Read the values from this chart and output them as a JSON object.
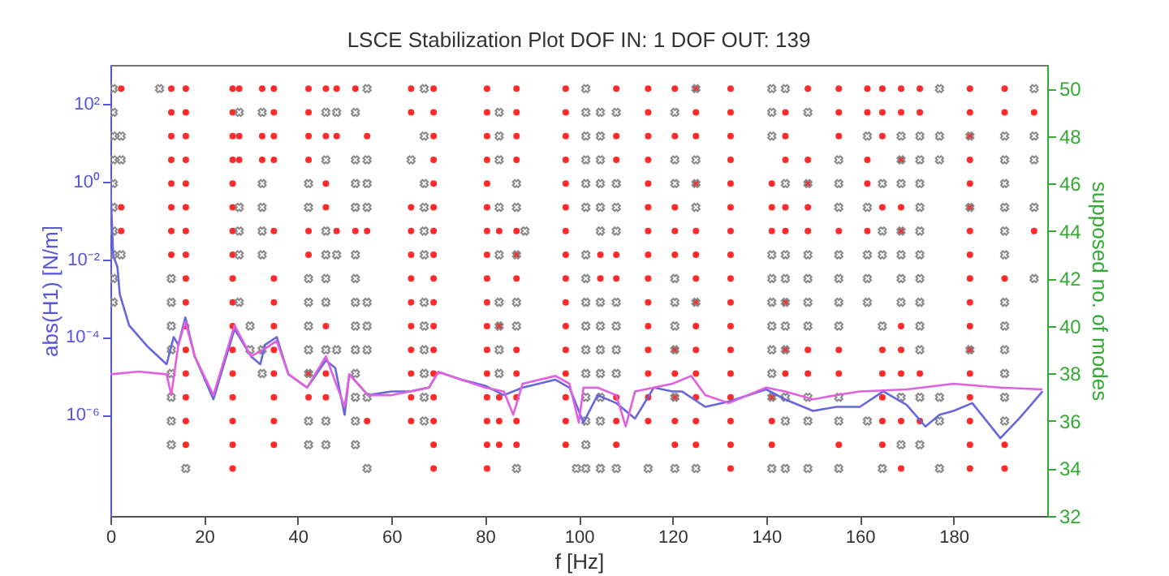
{
  "chart_data": {
    "type": "scatter",
    "title": "LSCE Stabilization Plot DOF IN: 1 DOF OUT: 139",
    "xlabel": "f [Hz]",
    "ylabel": "abs(H1) [N/m]",
    "y2label": "supposed no. of modes",
    "xlim": [
      0,
      200
    ],
    "xticks": [
      0,
      20,
      40,
      60,
      80,
      100,
      120,
      140,
      160,
      180
    ],
    "ylim": [
      2.5e-09,
      1000
    ],
    "yticks": [
      {
        "value": 1e-06,
        "label": "10⁻⁶"
      },
      {
        "value": 0.0001,
        "label": "10⁻⁴"
      },
      {
        "value": 0.01,
        "label": "10⁻²"
      },
      {
        "value": 1,
        "label": "10⁰"
      },
      {
        "value": 100,
        "label": "10²"
      }
    ],
    "y2lim": [
      32,
      51
    ],
    "y2ticks": [
      32,
      34,
      36,
      38,
      40,
      42,
      44,
      46,
      48,
      50
    ],
    "log": "y",
    "grid": false,
    "series": [
      {
        "type": "line",
        "axis": "y",
        "color": "#6666dd",
        "line_style": "solid",
        "marker": "none",
        "x": [
          0,
          0.6,
          1.5,
          2,
          4,
          8,
          12,
          13.5,
          14.5,
          16,
          18,
          22,
          26.5,
          30,
          32,
          33,
          35.5,
          38,
          42,
          46,
          48,
          50,
          51,
          55,
          60,
          64,
          68,
          70,
          75,
          80,
          84,
          88,
          95,
          98,
          101,
          104,
          108,
          112,
          116,
          120,
          122,
          127,
          132,
          140,
          144,
          150,
          155,
          160,
          165,
          170,
          174,
          177,
          180,
          184,
          190,
          194,
          199
        ],
        "values": [
          0.8,
          0.0126,
          0.0063,
          0.00126,
          0.0002,
          5.6e-05,
          2e-05,
          0.0001,
          6.3e-05,
          0.00032,
          3.2e-05,
          2.5e-06,
          0.00016,
          3.2e-05,
          2e-05,
          6.3e-05,
          0.0001,
          1.1e-05,
          5e-06,
          2.5e-05,
          1.6e-05,
          1e-06,
          1.1e-05,
          3.2e-06,
          4e-06,
          4e-06,
          5e-06,
          1.26e-05,
          8e-06,
          5.6e-06,
          3.2e-06,
          5e-06,
          8e-06,
          5e-06,
          6.3e-07,
          3.2e-06,
          2e-06,
          8e-07,
          5e-06,
          4e-06,
          4e-06,
          1.6e-06,
          2.2e-06,
          4.5e-06,
          2.5e-06,
          1.26e-06,
          1.6e-06,
          1.6e-06,
          4e-06,
          1.8e-06,
          5e-07,
          1e-06,
          1.26e-06,
          2e-06,
          2.5e-07,
          8e-07,
          4e-06
        ]
      },
      {
        "type": "line",
        "axis": "y",
        "color": "#e060e0",
        "line_style": "solid",
        "marker": "none",
        "x": [
          0,
          6,
          12,
          13,
          14.5,
          16,
          18,
          22,
          26.5,
          30,
          33,
          35.5,
          38,
          42,
          46,
          50,
          51,
          55,
          60,
          68,
          70,
          80,
          84,
          86,
          88,
          95,
          98,
          100,
          101,
          104,
          108,
          110,
          112,
          116,
          120,
          124,
          127,
          132,
          140,
          144,
          150,
          155,
          160,
          170,
          180,
          190,
          199
        ],
        "values": [
          1.1e-05,
          1.3e-05,
          1.1e-05,
          3.2e-06,
          6.3e-05,
          0.00025,
          3.2e-05,
          3.2e-06,
          0.0002,
          3.2e-05,
          5e-05,
          8e-05,
          1.1e-05,
          5e-06,
          3.2e-05,
          1.6e-06,
          1.1e-05,
          3.2e-06,
          3.2e-06,
          5e-06,
          1.26e-05,
          5e-06,
          4e-06,
          1e-06,
          6.3e-06,
          1e-05,
          6.3e-06,
          6.3e-07,
          5e-06,
          5e-06,
          3.2e-06,
          5e-07,
          4e-06,
          5e-06,
          6.3e-06,
          1e-05,
          3.2e-06,
          2e-06,
          5e-06,
          4e-06,
          2.5e-06,
          3.2e-06,
          4e-06,
          4.5e-06,
          6.3e-06,
          5e-06,
          4.5e-06
        ]
      },
      {
        "axis": "y2",
        "color": "#ff2a2a",
        "marker": "circle",
        "x": [
          2.3,
          2.3,
          2.3,
          13,
          13,
          13,
          13,
          13,
          13,
          13,
          13,
          16.1,
          16.1,
          16.1,
          16.1,
          16.1,
          16.1,
          16.1,
          16.1,
          16.1,
          16.1,
          16.1,
          16.1,
          16.1,
          16.1,
          16.1,
          16.1,
          26.1,
          26.1,
          26.1,
          26.1,
          26.1,
          26.1,
          26.1,
          26.1,
          26.1,
          26.1,
          26.1,
          26.1,
          26.1,
          26.1,
          26.1,
          26.1,
          26.1,
          27.5,
          27.5,
          27.5,
          32.4,
          32.4,
          32.4,
          34.9,
          34.9,
          34.9,
          34.9,
          34.9,
          34.9,
          34.9,
          34.9,
          34.9,
          34.9,
          34.9,
          34.9,
          34.9,
          42.3,
          42.3,
          42.3,
          42.3,
          42.3,
          42.3,
          42.3,
          42.3,
          46,
          46,
          46,
          46,
          46,
          46,
          46,
          48.3,
          48.3,
          48.3,
          52.3,
          52.3,
          54.8,
          54.8,
          54.8,
          64.2,
          64.2,
          64.2,
          64.2,
          64.2,
          64.2,
          64.2,
          64.2,
          64.2,
          64.2,
          64.2,
          64.2,
          69,
          69,
          69,
          69,
          69,
          69,
          69,
          69,
          69,
          69,
          69,
          69,
          69,
          69,
          69,
          69,
          69,
          80.4,
          80.4,
          80.4,
          80.4,
          80.4,
          80.4,
          80.4,
          80.4,
          80.4,
          80.4,
          80.4,
          80.4,
          80.4,
          80.4,
          80.4,
          80.4,
          80.4,
          83,
          83,
          83,
          83,
          83,
          86.7,
          86.7,
          86.7,
          86.7,
          86.7,
          86.7,
          86.7,
          86.7,
          86.7,
          86.7,
          86.7,
          86.7,
          97.2,
          97.2,
          97.2,
          97.2,
          97.2,
          97.2,
          97.2,
          97.2,
          97.2,
          97.2,
          97.2,
          97.2,
          97.2,
          97.2,
          97.2,
          97.2,
          104.6,
          104.6,
          108,
          108,
          108,
          108,
          108,
          108,
          108,
          108,
          114.8,
          114.8,
          114.8,
          114.8,
          114.8,
          114.8,
          114.8,
          114.8,
          114.8,
          114.8,
          114.8,
          114.8,
          114.8,
          114.8,
          114.8,
          120.5,
          120.5,
          120.5,
          120.5,
          120.5,
          120.5,
          120.5,
          120.5,
          120.5,
          120.5,
          125,
          125,
          125,
          125,
          125,
          125,
          125,
          125,
          125,
          125,
          125,
          125,
          125,
          125,
          132.4,
          132.4,
          132.4,
          132.4,
          132.4,
          132.4,
          132.4,
          132.4,
          132.4,
          132.4,
          132.4,
          132.4,
          132.4,
          132.4,
          132.4,
          132.4,
          132.4,
          141.2,
          141.2,
          141.2,
          141.2,
          141.2,
          141.2,
          144.1,
          144.1,
          144.1,
          144.1,
          144.1,
          144.1,
          144.1,
          144.1,
          148.9,
          148.9,
          148.9,
          148.9,
          148.9,
          148.9,
          148.9,
          155.5,
          155.5,
          155.5,
          155.5,
          155.5,
          155.5,
          155.5,
          161.6,
          161.6,
          161.6,
          161.6,
          161.6,
          164.8,
          164.8,
          164.8,
          164.8,
          164.8,
          164.8,
          164.8,
          164.8,
          164.8,
          168.8,
          168.8,
          168.8,
          168.8,
          168.8,
          168.8,
          168.8,
          168.8,
          168.8,
          168.8,
          172.8,
          172.8,
          172.8,
          172.8,
          183.5,
          183.5,
          183.5,
          183.5,
          183.5,
          183.5,
          183.5,
          183.5,
          183.5,
          183.5,
          183.5,
          183.5,
          183.5,
          183.5,
          183.5,
          183.5,
          183.5,
          190.9,
          190.9,
          190.9,
          190.9,
          190.9,
          197.2,
          197.2
        ],
        "values": [
          50,
          45,
          44,
          50,
          49,
          48,
          47,
          46,
          45,
          44,
          43,
          50,
          49,
          48,
          47,
          46,
          45,
          44,
          43,
          42,
          41,
          40,
          39,
          38,
          37,
          36,
          35,
          50,
          49,
          48,
          47,
          46,
          45,
          44,
          43,
          42,
          41,
          40,
          39,
          38,
          37,
          36,
          35,
          34,
          50,
          48,
          47,
          50,
          48,
          47,
          50,
          49,
          48,
          47,
          44,
          42,
          41,
          40,
          39,
          38,
          37,
          36,
          35,
          50,
          49,
          48,
          47,
          44,
          43,
          38,
          37,
          50,
          48,
          46,
          45,
          40,
          38,
          37,
          50,
          48,
          44,
          50,
          44,
          48,
          44,
          36,
          50,
          49,
          45,
          44,
          43,
          42,
          41,
          40,
          39,
          38,
          37,
          36,
          50,
          49,
          48,
          47,
          46,
          45,
          44,
          43,
          42,
          41,
          40,
          39,
          38,
          37,
          36,
          35,
          34,
          50,
          49,
          48,
          47,
          46,
          45,
          44,
          43,
          42,
          41,
          40,
          39,
          38,
          37,
          36,
          35,
          34,
          44,
          40,
          37,
          36,
          35,
          50,
          49,
          48,
          47,
          44,
          43,
          42,
          39,
          38,
          37,
          36,
          35,
          50,
          49,
          48,
          47,
          46,
          45,
          44,
          43,
          42,
          41,
          40,
          39,
          38,
          37,
          36,
          35,
          43,
          42,
          50,
          48,
          47,
          43,
          42,
          37,
          36,
          35,
          50,
          49,
          48,
          47,
          46,
          45,
          44,
          43,
          42,
          41,
          40,
          39,
          38,
          37,
          36,
          50,
          48,
          45,
          44,
          43,
          39,
          38,
          37,
          36,
          35,
          50,
          49,
          48,
          46,
          44,
          43,
          42,
          41,
          40,
          39,
          38,
          37,
          36,
          35,
          50,
          49,
          48,
          47,
          46,
          45,
          44,
          43,
          42,
          41,
          40,
          39,
          38,
          37,
          36,
          35,
          34,
          46,
          45,
          44,
          37,
          36,
          35,
          49,
          48,
          47,
          45,
          44,
          41,
          39,
          38,
          50,
          47,
          46,
          45,
          44,
          39,
          38,
          50,
          49,
          48,
          44,
          39,
          38,
          35,
          50,
          49,
          47,
          46,
          44,
          50,
          49,
          48,
          45,
          39,
          38,
          37,
          36,
          35,
          50,
          49,
          47,
          45,
          44,
          40,
          39,
          38,
          36,
          34,
          50,
          49,
          38,
          36,
          50,
          49,
          48,
          47,
          46,
          45,
          44,
          43,
          42,
          41,
          40,
          39,
          38,
          37,
          36,
          35,
          34,
          50,
          49,
          42,
          35,
          34,
          49,
          44
        ]
      },
      {
        "axis": "y2",
        "color": "#888888",
        "marker": "cross",
        "x": [
          0.6,
          0.6,
          0.6,
          0.6,
          0.6,
          0.6,
          0.6,
          0.6,
          0.6,
          0.6,
          2.3,
          2.3,
          2.3,
          10.5,
          13,
          13,
          13,
          13,
          13,
          13,
          13,
          13,
          16.1,
          27.5,
          27.5,
          27.5,
          27.5,
          27.5,
          29.8,
          29.8,
          32.4,
          32.4,
          32.4,
          32.4,
          32.4,
          32.4,
          32.4,
          42.3,
          42.3,
          42.3,
          42.3,
          42.3,
          42.3,
          42.3,
          42.3,
          42.3,
          46,
          46,
          46,
          46,
          46,
          46,
          46,
          46,
          46,
          48.3,
          48.3,
          48.3,
          52.3,
          52.3,
          52.3,
          52.3,
          52.3,
          52.3,
          52.3,
          52.3,
          52.3,
          52.3,
          52.3,
          52.3,
          52.3,
          54.8,
          54.8,
          54.8,
          54.8,
          54.8,
          54.8,
          54.8,
          54.8,
          54.8,
          64.2,
          67,
          67,
          67,
          67,
          67,
          67,
          67,
          67,
          67,
          67,
          67,
          67,
          83,
          83,
          83,
          83,
          83,
          83,
          83,
          83,
          83,
          86.7,
          86.7,
          86.7,
          86.7,
          86.7,
          86.7,
          88.5,
          99.5,
          101.5,
          101.5,
          101.5,
          101.5,
          101.5,
          101.5,
          101.5,
          101.5,
          101.5,
          101.5,
          101.5,
          101.5,
          101.5,
          101.5,
          101.5,
          101.5,
          104.6,
          104.6,
          104.6,
          104.6,
          104.6,
          104.6,
          104.6,
          104.6,
          104.6,
          104.6,
          104.6,
          104.6,
          104.6,
          108,
          108,
          108,
          108,
          108,
          108,
          108,
          108,
          108,
          114.8,
          120.5,
          120.5,
          120.5,
          120.5,
          120.5,
          120.5,
          120.5,
          120.5,
          120.5,
          125,
          125,
          125,
          125,
          125,
          125,
          141.2,
          141.2,
          141.2,
          141.2,
          141.2,
          141.2,
          141.2,
          141.2,
          141.2,
          141.2,
          141.2,
          144.1,
          144.1,
          144.1,
          144.1,
          144.1,
          144.1,
          144.1,
          144.1,
          144.1,
          144.1,
          148.9,
          148.9,
          148.9,
          148.9,
          148.9,
          148.9,
          148.9,
          148.9,
          148.9,
          155.5,
          155.5,
          155.5,
          155.5,
          155.5,
          155.5,
          155.5,
          155.5,
          155.5,
          155.5,
          161.6,
          161.6,
          161.6,
          161.6,
          161.6,
          161.6,
          164.8,
          164.8,
          164.8,
          164.8,
          164.8,
          168.8,
          168.8,
          168.8,
          168.8,
          168.8,
          168.8,
          168.8,
          168.8,
          168.8,
          172.8,
          172.8,
          172.8,
          172.8,
          172.8,
          172.8,
          172.8,
          172.8,
          172.8,
          172.8,
          172.8,
          172.8,
          177,
          177,
          177,
          177,
          177,
          177,
          183.5,
          183.5,
          183.5,
          190.9,
          190.9,
          190.9,
          190.9,
          190.9,
          190.9,
          190.9,
          190.9,
          190.9,
          190.9,
          190.9,
          190.9,
          197.2,
          197.2,
          197.2,
          197.2,
          197.2
        ],
        "values": [
          50,
          49,
          48,
          47,
          46,
          45,
          44,
          43,
          42,
          41,
          48,
          47,
          43,
          50,
          42,
          41,
          40,
          39,
          38,
          37,
          36,
          35,
          34,
          49,
          45,
          44,
          43,
          41,
          40,
          39,
          49,
          46,
          45,
          44,
          43,
          39,
          38,
          46,
          45,
          42,
          41,
          40,
          39,
          38,
          36,
          35,
          49,
          47,
          44,
          43,
          42,
          41,
          39,
          36,
          35,
          49,
          43,
          39,
          49,
          47,
          46,
          45,
          43,
          42,
          41,
          40,
          39,
          38,
          37,
          36,
          35,
          50,
          47,
          46,
          45,
          41,
          40,
          39,
          37,
          34,
          47,
          50,
          48,
          46,
          45,
          44,
          43,
          41,
          40,
          39,
          38,
          37,
          36,
          49,
          48,
          47,
          45,
          43,
          41,
          40,
          39,
          38,
          46,
          45,
          43,
          41,
          40,
          34,
          44,
          34,
          50,
          49,
          48,
          47,
          46,
          45,
          43,
          42,
          41,
          40,
          39,
          38,
          37,
          36,
          35,
          34,
          49,
          48,
          47,
          46,
          45,
          44,
          41,
          40,
          39,
          38,
          37,
          36,
          34,
          49,
          46,
          45,
          44,
          41,
          40,
          39,
          38,
          34,
          34,
          49,
          47,
          46,
          42,
          41,
          40,
          39,
          37,
          34,
          50,
          47,
          46,
          45,
          41,
          34,
          50,
          49,
          48,
          43,
          42,
          41,
          40,
          39,
          38,
          37,
          34,
          50,
          46,
          43,
          42,
          41,
          40,
          39,
          37,
          36,
          34,
          49,
          46,
          43,
          42,
          41,
          40,
          37,
          36,
          34,
          47,
          46,
          45,
          43,
          42,
          41,
          40,
          37,
          36,
          34,
          48,
          45,
          43,
          42,
          41,
          36,
          46,
          44,
          43,
          40,
          34,
          48,
          47,
          46,
          44,
          43,
          42,
          41,
          37,
          35,
          48,
          47,
          46,
          45,
          44,
          43,
          42,
          41,
          40,
          39,
          37,
          35,
          50,
          48,
          47,
          37,
          36,
          34,
          48,
          45,
          39,
          48,
          47,
          46,
          45,
          44,
          43,
          41,
          40,
          39,
          38,
          37,
          36,
          50,
          48,
          47,
          45,
          42
        ]
      }
    ]
  }
}
